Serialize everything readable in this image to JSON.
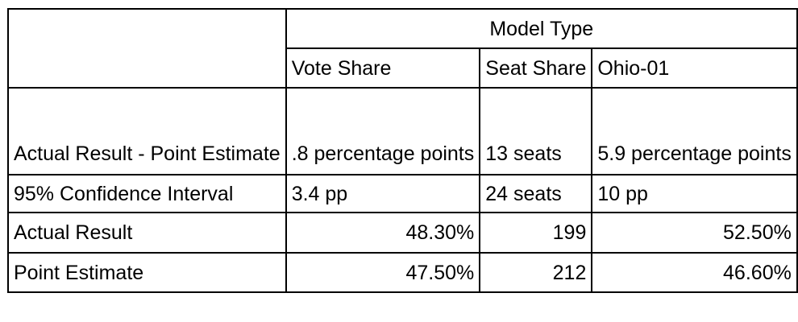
{
  "table": {
    "group_header": "Model Type",
    "columns": [
      "Vote Share",
      "Seat Share",
      "Ohio-01"
    ],
    "rows": [
      {
        "label": "Actual Result - Point Estimate",
        "values": [
          ".8 percentage points",
          "13 seats",
          "5.9 percentage points"
        ]
      },
      {
        "label": "95% Confidence Interval",
        "values": [
          "3.4 pp",
          "24 seats",
          "10 pp"
        ]
      },
      {
        "label": "Actual Result",
        "values": [
          "48.30%",
          "199",
          "52.50%"
        ]
      },
      {
        "label": "Point Estimate",
        "values": [
          "47.50%",
          "212",
          "46.60%"
        ]
      }
    ]
  }
}
